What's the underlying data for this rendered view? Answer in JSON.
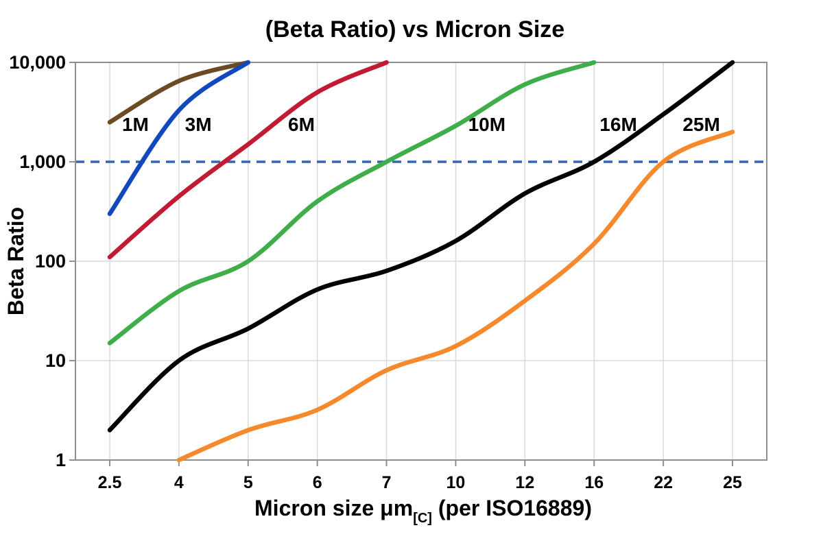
{
  "title": "(Beta Ratio) vs Micron Size",
  "x_axis": {
    "title_main": "Micron size μm",
    "title_sub": "[C]",
    "title_rest": " (per ISO16889)",
    "tick_labels": [
      "2.5",
      "4",
      "5",
      "6",
      "7",
      "10",
      "12",
      "16",
      "22",
      "25"
    ]
  },
  "y_axis": {
    "title": "Beta Ratio",
    "tick_labels": [
      "10,000",
      "1,000",
      "100",
      "10",
      "1"
    ],
    "tick_values": [
      10000,
      1000,
      100,
      10,
      1
    ]
  },
  "reference_line": {
    "value": 1000,
    "color": "#3465b4",
    "style": "dashed"
  },
  "colors": {
    "grid": "#d9d9d9",
    "frame": "#8f8f8f",
    "background": "#ffffff"
  },
  "chart_data": {
    "type": "line",
    "title": "(Beta Ratio) vs Micron Size",
    "xlabel": "Micron size μm[C] (per ISO16889)",
    "ylabel": "Beta Ratio",
    "x_scale": "categorical-evenly-spaced",
    "y_scale": "log",
    "ylim": [
      1,
      10000
    ],
    "grid": true,
    "legend_position": "inline-labels",
    "categories": [
      2.5,
      4,
      5,
      6,
      7,
      10,
      12,
      16,
      22,
      25
    ],
    "dashed_reference_y": 1000,
    "series": [
      {
        "name": "1M",
        "color": "#6b4a24",
        "values": [
          2500,
          6500,
          10000,
          null,
          null,
          null,
          null,
          null,
          null,
          null
        ],
        "label_anchor": {
          "x_index": 0.37,
          "y_value": 2400
        }
      },
      {
        "name": "3M",
        "color": "#1149bd",
        "values": [
          300,
          3300,
          10000,
          null,
          null,
          null,
          null,
          null,
          null,
          null
        ],
        "label_anchor": {
          "x_index": 1.28,
          "y_value": 2400
        }
      },
      {
        "name": "6M",
        "color": "#c11a33",
        "values": [
          110,
          450,
          1500,
          5000,
          10000,
          null,
          null,
          null,
          null,
          null
        ],
        "label_anchor": {
          "x_index": 2.77,
          "y_value": 2400
        }
      },
      {
        "name": "10M",
        "color": "#3fad49",
        "values": [
          15,
          50,
          100,
          400,
          1000,
          2300,
          6000,
          10000,
          null,
          null
        ],
        "label_anchor": {
          "x_index": 5.45,
          "y_value": 2400
        }
      },
      {
        "name": "16M",
        "color": "#000000",
        "values": [
          2,
          10,
          21,
          52,
          80,
          160,
          480,
          1000,
          3000,
          10000
        ],
        "label_anchor": {
          "x_index": 7.35,
          "y_value": 2400
        }
      },
      {
        "name": "25M",
        "color": "#f6892b",
        "values": [
          null,
          1,
          2,
          3.2,
          8,
          14,
          40,
          150,
          1000,
          2000
        ],
        "label_anchor": {
          "x_index": 8.55,
          "y_value": 2400
        }
      }
    ]
  }
}
